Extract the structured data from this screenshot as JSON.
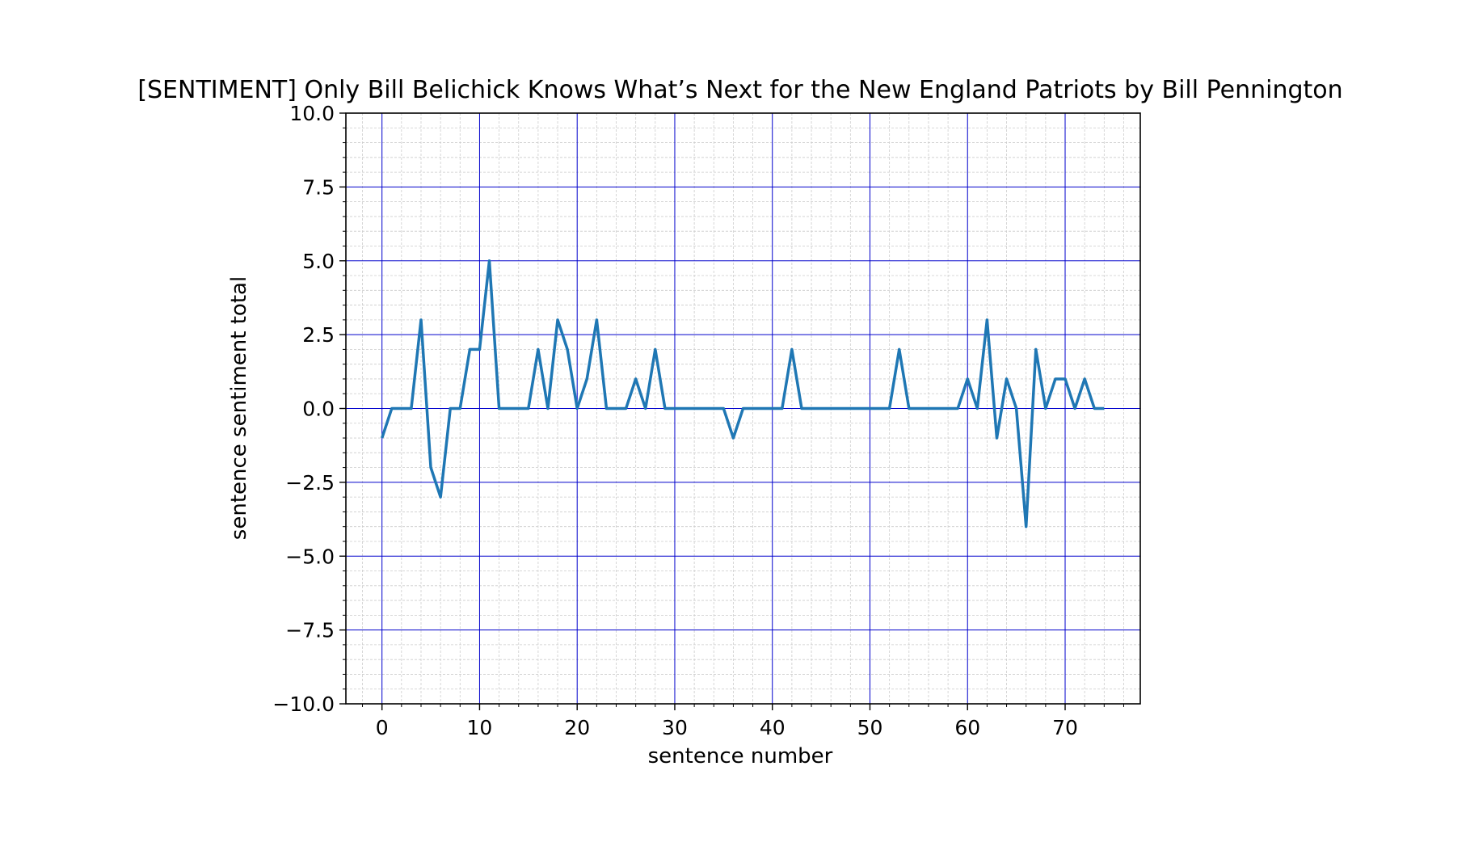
{
  "chart_data": {
    "type": "line",
    "title": "[SENTIMENT] Only Bill Belichick Knows What’s Next for the New England Patriots by Bill Pennington",
    "xlabel": "sentence number",
    "ylabel": "sentence sentiment total",
    "xlim": [
      -3.7,
      77.7
    ],
    "ylim": [
      -10.0,
      10.0
    ],
    "x_ticks": [
      0,
      10,
      20,
      30,
      40,
      50,
      60,
      70
    ],
    "x_tick_labels": [
      "0",
      "10",
      "20",
      "30",
      "40",
      "50",
      "60",
      "70"
    ],
    "y_ticks": [
      -10.0,
      -7.5,
      -5.0,
      -2.5,
      0.0,
      2.5,
      5.0,
      7.5,
      10.0
    ],
    "y_tick_labels": [
      "−10.0",
      "−7.5",
      "−5.0",
      "−2.5",
      "0.0",
      "2.5",
      "5.0",
      "7.5",
      "10.0"
    ],
    "grid": {
      "major": true,
      "minor": true,
      "major_color": "#0000cc",
      "minor_color": "#cccccc"
    },
    "series": [
      {
        "color": "#1f77b4",
        "x": [
          0,
          1,
          2,
          3,
          4,
          5,
          6,
          7,
          8,
          9,
          10,
          11,
          12,
          13,
          14,
          15,
          16,
          17,
          18,
          19,
          20,
          21,
          22,
          23,
          24,
          25,
          26,
          27,
          28,
          29,
          30,
          31,
          32,
          33,
          34,
          35,
          36,
          37,
          38,
          39,
          40,
          41,
          42,
          43,
          44,
          45,
          46,
          47,
          48,
          49,
          50,
          51,
          52,
          53,
          54,
          55,
          56,
          57,
          58,
          59,
          60,
          61,
          62,
          63,
          64,
          65,
          66,
          67,
          68,
          69,
          70,
          71,
          72,
          73,
          74
        ],
        "values": [
          -1,
          0,
          0,
          0,
          3,
          -2,
          -3,
          0,
          0,
          2,
          2,
          5,
          0,
          0,
          0,
          0,
          2,
          0,
          3,
          2,
          0,
          1,
          3,
          0,
          0,
          0,
          1,
          0,
          2,
          0,
          0,
          0,
          0,
          0,
          0,
          0,
          -1,
          0,
          0,
          0,
          0,
          0,
          2,
          0,
          0,
          0,
          0,
          0,
          0,
          0,
          0,
          0,
          0,
          2,
          0,
          0,
          0,
          0,
          0,
          0,
          1,
          0,
          3,
          -1,
          1,
          0,
          -4,
          2,
          0,
          1,
          1,
          0,
          1,
          0,
          0
        ]
      }
    ]
  }
}
